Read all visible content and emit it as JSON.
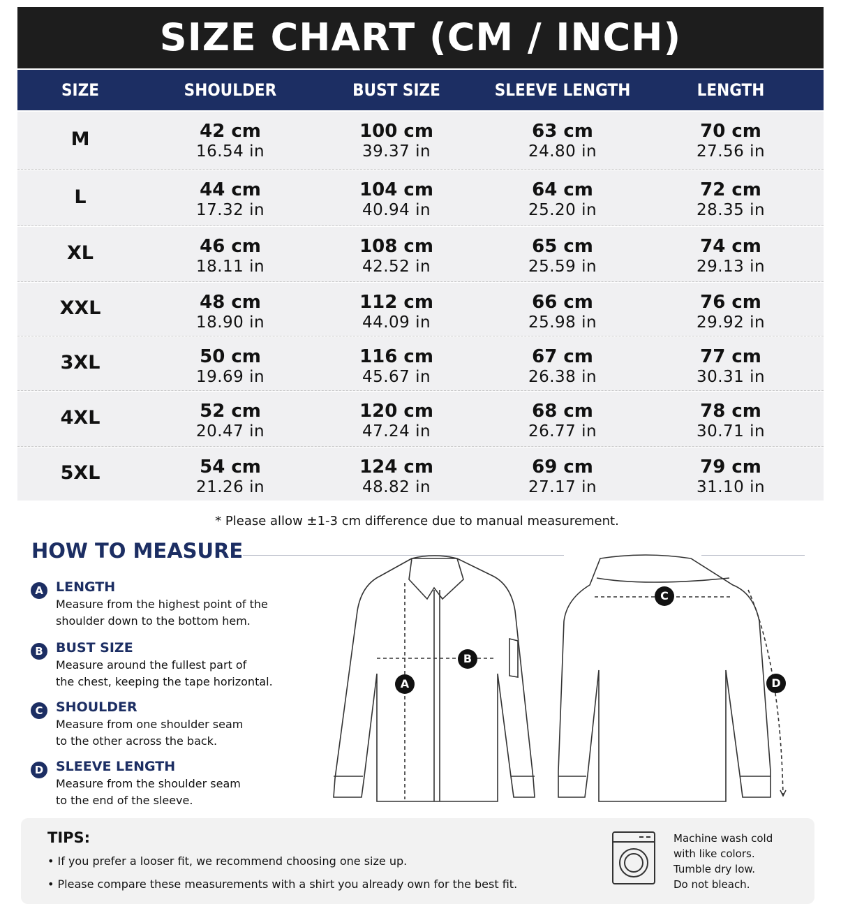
{
  "title": "SIZE CHART (CM / INCH)",
  "table": {
    "headers": [
      "SIZE",
      "SHOULDER",
      "BUST SIZE",
      "SLEEVE LENGTH",
      "LENGTH"
    ],
    "rows": [
      [
        "M",
        [
          "42 cm",
          "16.54 in"
        ],
        [
          "100 cm",
          "39.37 in"
        ],
        [
          "63 cm",
          "24.80 in"
        ],
        [
          "70 cm",
          "27.56 in"
        ]
      ],
      [
        "L",
        [
          "44 cm",
          "17.32 in"
        ],
        [
          "104 cm",
          "40.94 in"
        ],
        [
          "64 cm",
          "25.20 in"
        ],
        [
          "72 cm",
          "28.35 in"
        ]
      ],
      [
        "XL",
        [
          "46 cm",
          "18.11 in"
        ],
        [
          "108 cm",
          "42.52 in"
        ],
        [
          "65 cm",
          "25.59 in"
        ],
        [
          "74 cm",
          "29.13 in"
        ]
      ],
      [
        "XXL",
        [
          "48 cm",
          "18.90 in"
        ],
        [
          "112 cm",
          "44.09 in"
        ],
        [
          "66 cm",
          "25.98 in"
        ],
        [
          "76 cm",
          "29.92 in"
        ]
      ],
      [
        "3XL",
        [
          "50 cm",
          "19.69 in"
        ],
        [
          "116 cm",
          "45.67 in"
        ],
        [
          "67 cm",
          "26.38 in"
        ],
        [
          "77 cm",
          "30.31 in"
        ]
      ],
      [
        "4XL",
        [
          "52 cm",
          "20.47 in"
        ],
        [
          "120 cm",
          "47.24 in"
        ],
        [
          "68 cm",
          "26.77 in"
        ],
        [
          "78 cm",
          "30.71 in"
        ]
      ],
      [
        "5XL",
        [
          "54 cm",
          "21.26 in"
        ],
        [
          "124 cm",
          "48.82 in"
        ],
        [
          "69 cm",
          "27.17 in"
        ],
        [
          "79 cm",
          "31.10 in"
        ]
      ]
    ]
  },
  "note": "* Please allow ±1-3 cm difference due to manual measurement.",
  "how_to_measure": {
    "title": "HOW TO MEASURE",
    "items": [
      {
        "letter": "A",
        "title": "LENGTH",
        "lines": [
          "Measure from the highest point of the",
          "shoulder down to the bottom hem."
        ]
      },
      {
        "letter": "B",
        "title": "BUST SIZE",
        "lines": [
          "Measure around the fullest part of",
          "the chest, keeping the tape horizontal."
        ]
      },
      {
        "letter": "C",
        "title": "SHOULDER",
        "lines": [
          "Measure from one shoulder seam",
          "to the other across the back."
        ]
      },
      {
        "letter": "D",
        "title": "SLEEVE LENGTH",
        "lines": [
          "Measure from the shoulder seam",
          "to the end of the sleeve."
        ]
      }
    ]
  },
  "tips": {
    "title": "TIPS:",
    "items": [
      "• If you prefer a looser fit, we recommend choosing one size up.",
      "• Please compare these measurements with a shirt you already own for the best fit."
    ]
  },
  "care": [
    "Machine wash cold",
    "with like colors.",
    "Tumble dry low.",
    "Do not bleach."
  ]
}
